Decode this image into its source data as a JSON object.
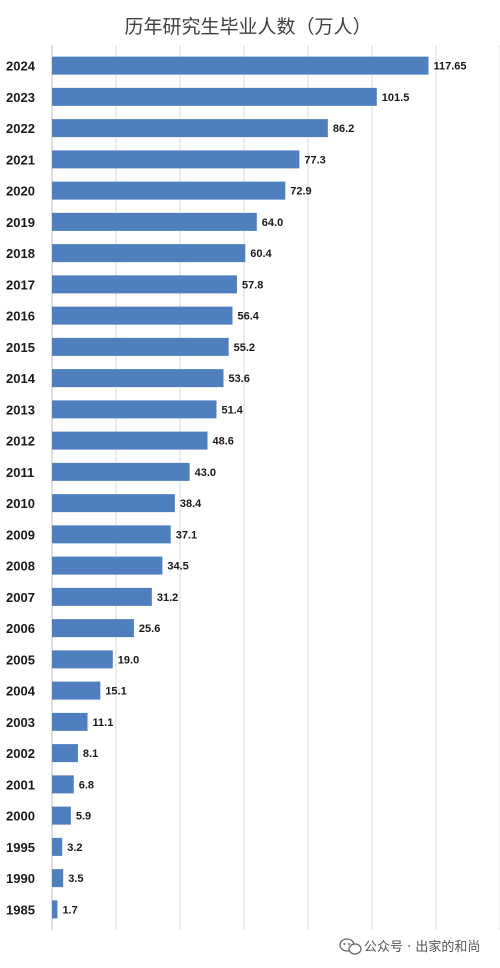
{
  "chart_data": {
    "type": "bar",
    "orientation": "horizontal",
    "title": "历年研究生毕业人数（万人）",
    "xlabel": "",
    "ylabel": "",
    "xlim": [
      0,
      140
    ],
    "grid": "vertical",
    "bar_color": "#4f7fbf",
    "categories": [
      "2024",
      "2023",
      "2022",
      "2021",
      "2020",
      "2019",
      "2018",
      "2017",
      "2016",
      "2015",
      "2014",
      "2013",
      "2012",
      "2011",
      "2010",
      "2009",
      "2008",
      "2007",
      "2006",
      "2005",
      "2004",
      "2003",
      "2002",
      "2001",
      "2000",
      "1995",
      "1990",
      "1985"
    ],
    "values": [
      117.65,
      101.5,
      86.2,
      77.3,
      72.9,
      64.0,
      60.4,
      57.8,
      56.4,
      55.2,
      53.6,
      51.4,
      48.6,
      43.0,
      38.4,
      37.1,
      34.5,
      31.2,
      25.6,
      19.0,
      15.1,
      11.1,
      8.1,
      6.8,
      5.9,
      3.2,
      3.5,
      1.7
    ],
    "value_labels": [
      "117.65",
      "101.5",
      "86.2",
      "77.3",
      "72.9",
      "64.0",
      "60.4",
      "57.8",
      "56.4",
      "55.2",
      "53.6",
      "51.4",
      "48.6",
      "43.0",
      "38.4",
      "37.1",
      "34.5",
      "31.2",
      "25.6",
      "19.0",
      "15.1",
      "11.1",
      "8.1",
      "6.8",
      "5.9",
      "3.2",
      "3.5",
      "1.7"
    ]
  },
  "watermark": {
    "icon": "wechat-icon",
    "text": "公众号 · 出家的和尚"
  }
}
